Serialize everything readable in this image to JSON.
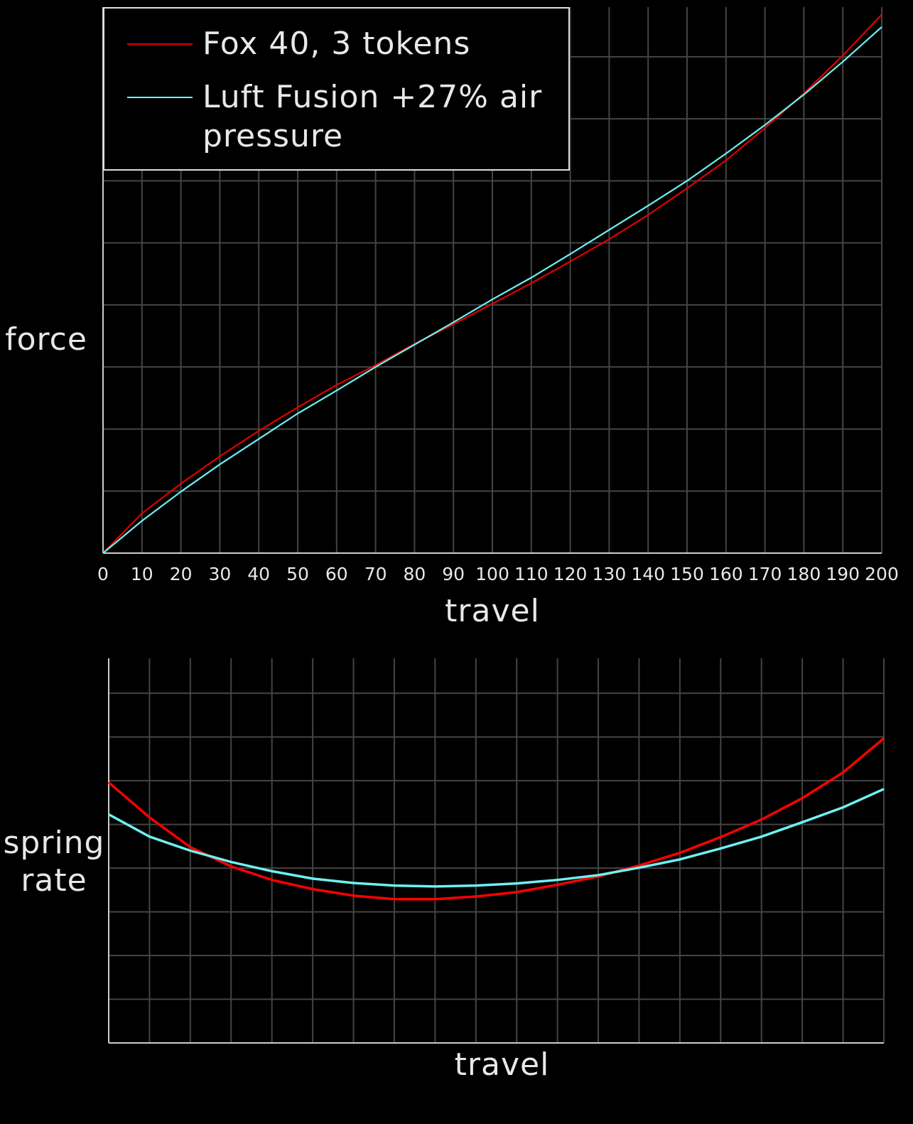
{
  "chart_data": [
    {
      "type": "line",
      "xlabel": "travel",
      "ylabel": "force",
      "x": [
        0,
        10,
        20,
        30,
        40,
        50,
        60,
        70,
        80,
        90,
        100,
        110,
        120,
        130,
        140,
        150,
        160,
        170,
        180,
        190,
        200
      ],
      "xlim": [
        0,
        200
      ],
      "xticks": [
        0,
        10,
        20,
        30,
        40,
        50,
        60,
        70,
        80,
        90,
        100,
        110,
        120,
        130,
        140,
        150,
        160,
        170,
        180,
        190,
        200
      ],
      "ylim": [
        0,
        8.8
      ],
      "yticks": [
        0,
        1,
        2,
        3,
        4,
        5,
        6,
        7,
        8
      ],
      "grid": true,
      "tick_labels": true,
      "legend": "upper left",
      "series": [
        {
          "name": "Fox 40, 3 tokens",
          "color": "#e00000",
          "values": [
            0,
            0.64,
            1.12,
            1.56,
            1.97,
            2.35,
            2.71,
            3.03,
            3.37,
            3.69,
            4.02,
            4.35,
            4.7,
            5.06,
            5.45,
            5.88,
            6.33,
            6.85,
            7.41,
            8.02,
            8.68
          ]
        },
        {
          "name": "Luft Fusion +27% air pressure",
          "color": "#6ff0f0",
          "values": [
            0,
            0.52,
            0.99,
            1.43,
            1.84,
            2.25,
            2.62,
            3.0,
            3.36,
            3.72,
            4.09,
            4.44,
            4.82,
            5.21,
            5.6,
            6.0,
            6.44,
            6.9,
            7.39,
            7.92,
            8.48
          ]
        }
      ]
    },
    {
      "type": "line",
      "xlabel": "travel",
      "ylabel": "spring rate",
      "x": [
        0,
        1,
        2,
        3,
        4,
        5,
        6,
        7,
        8,
        9,
        10,
        11,
        12,
        13,
        14,
        15,
        16,
        17,
        18,
        19
      ],
      "xlim": [
        0,
        19
      ],
      "xticks": [
        0,
        1,
        2,
        3,
        4,
        5,
        6,
        7,
        8,
        9,
        10,
        11,
        12,
        13,
        14,
        15,
        16,
        17,
        18,
        19
      ],
      "ylim": [
        0,
        8.8
      ],
      "yticks": [
        0,
        1,
        2,
        3,
        4,
        5,
        6,
        7,
        8
      ],
      "grid": true,
      "tick_labels": false,
      "series": [
        {
          "color": "#ff0000",
          "values": [
            5.96,
            5.16,
            4.48,
            4.04,
            3.73,
            3.52,
            3.37,
            3.29,
            3.29,
            3.35,
            3.45,
            3.62,
            3.81,
            4.06,
            4.35,
            4.71,
            5.11,
            5.6,
            6.19,
            6.97
          ]
        },
        {
          "color": "#6ff0f0",
          "values": [
            5.23,
            4.72,
            4.4,
            4.14,
            3.93,
            3.76,
            3.66,
            3.6,
            3.58,
            3.6,
            3.65,
            3.73,
            3.84,
            4.01,
            4.2,
            4.45,
            4.72,
            5.05,
            5.39,
            5.81
          ]
        }
      ]
    }
  ]
}
